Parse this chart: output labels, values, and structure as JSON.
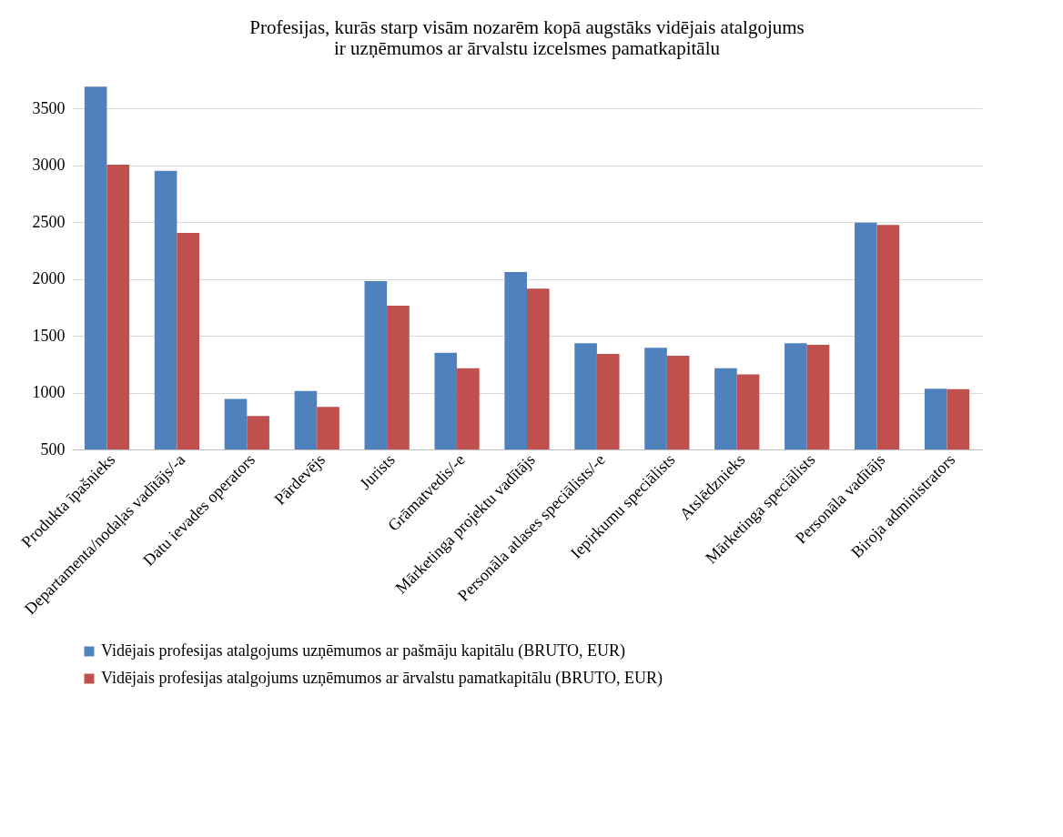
{
  "chart_data": {
    "type": "bar",
    "title": "Profesijas, kurās starp visām nozarēm kopā augstāks vidējais atalgojums ir uzņēmumos ar ārvalstu izcelsmes pamatkapitālu",
    "categories": [
      "Produkta īpašnieks",
      "Departamenta/nodaļas vadītājs/-a",
      "Datu ievades operators",
      "Pārdevējs",
      "Jurists",
      "Grāmatvedis/-e",
      "Mārketinga projektu vadītājs",
      "Personāla atlases speciālists/-e",
      "Iepirkumu speciālists",
      "Atslēdznieks",
      "Mārketinga speciālists",
      "Personāla vadītājs",
      "Biroja administrators"
    ],
    "series": [
      {
        "name": "Vidējais profesijas atalgojums uzņēmumos ar pašmāju kapitālu (BRUTO, EUR)",
        "color": "#4f81bd",
        "values": [
          3690,
          2950,
          945,
          1015,
          1980,
          1350,
          2060,
          1435,
          1395,
          1215,
          1435,
          2495,
          1035
        ]
      },
      {
        "name": "Vidējais profesijas atalgojums uzņēmumos ar ārvalstu pamatkapitālu (BRUTO, EUR)",
        "color": "#c0504d",
        "values": [
          3005,
          2405,
          795,
          875,
          1765,
          1215,
          1915,
          1340,
          1325,
          1160,
          1420,
          2475,
          1030
        ]
      }
    ],
    "ylim": [
      500,
      3700
    ],
    "yticks": [
      500,
      1000,
      1500,
      2000,
      2500,
      3000,
      3500
    ],
    "grid": "y",
    "legend": "bottom"
  }
}
